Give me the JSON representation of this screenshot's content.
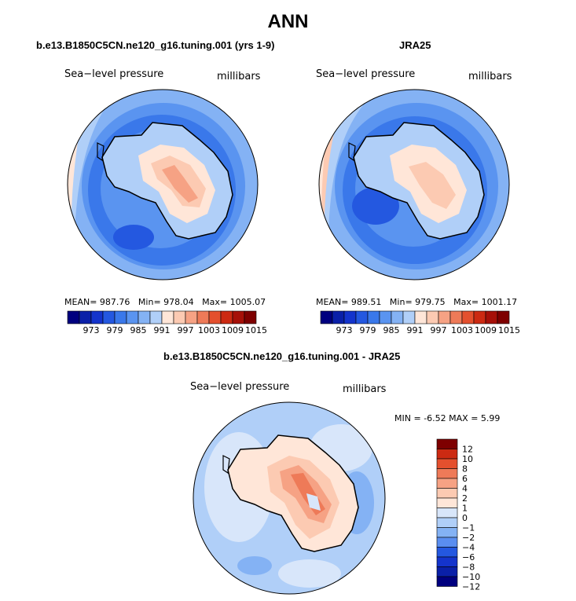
{
  "title": "ANN",
  "panels": [
    {
      "title": "b.e13.B1850C5CN.ne120_g16.tuning.001 (yrs 1-9)",
      "variable_label": "Sea−level pressure",
      "units_label": "millibars",
      "stats": {
        "mean_label": "MEAN=",
        "mean": "987.76",
        "min_label": "Min=",
        "min": "978.04",
        "max_label": "Max=",
        "max": "1005.07"
      }
    },
    {
      "title": "JRA25",
      "variable_label": "Sea−level pressure",
      "units_label": "millibars",
      "stats": {
        "mean_label": "MEAN=",
        "mean": "989.51",
        "min_label": "Min=",
        "min": "979.75",
        "max_label": "Max=",
        "max": "1001.17"
      }
    }
  ],
  "diff_panel": {
    "title": "b.e13.B1850C5CN.ne120_g16.tuning.001 - JRA25",
    "variable_label": "Sea−level pressure",
    "units_label": "millibars",
    "min_label": "MIN =",
    "min": "-6.52",
    "max_label": "MAX =",
    "max": "5.99"
  },
  "colors": {
    "abs_colorbar": [
      "#00007f",
      "#0a20a8",
      "#1434cc",
      "#2458e0",
      "#3a78ea",
      "#5a94f0",
      "#84b2f4",
      "#b0cff8",
      "#ffe6d8",
      "#fccab2",
      "#f6a284",
      "#ee7a58",
      "#e4502e",
      "#cc2a12",
      "#a61008",
      "#7e0000"
    ],
    "diff_colorbar": [
      "#00007f",
      "#0a20a8",
      "#1434cc",
      "#2458e0",
      "#5a8ef0",
      "#84b2f4",
      "#b0cff8",
      "#d8e6fa",
      "#ffe6d8",
      "#fccab2",
      "#f6a284",
      "#ee7a58",
      "#e4502e",
      "#cc2a12",
      "#7e0000"
    ]
  },
  "chart_data": [
    {
      "type": "heatmap",
      "title": "b.e13.B1850C5CN.ne120_g16.tuning.001 (yrs 1-9)",
      "projection": "south polar stereographic",
      "variable": "Sea−level pressure",
      "units": "millibars",
      "mean": 987.76,
      "min": 978.04,
      "max": 1005.07,
      "colorbar_ticks": [
        "973",
        "979",
        "985",
        "991",
        "997",
        "1003",
        "1009",
        "1015"
      ]
    },
    {
      "type": "heatmap",
      "title": "JRA25",
      "projection": "south polar stereographic",
      "variable": "Sea−level pressure",
      "units": "millibars",
      "mean": 989.51,
      "min": 979.75,
      "max": 1001.17,
      "colorbar_ticks": [
        "973",
        "979",
        "985",
        "991",
        "997",
        "1003",
        "1009",
        "1015"
      ]
    },
    {
      "type": "heatmap",
      "title": "b.e13.B1850C5CN.ne120_g16.tuning.001 - JRA25",
      "projection": "south polar stereographic",
      "variable": "Sea−level pressure",
      "units": "millibars",
      "min": -6.52,
      "max": 5.99,
      "colorbar_ticks": [
        "12",
        "10",
        "8",
        "6",
        "4",
        "2",
        "1",
        "0",
        "−1",
        "−2",
        "−4",
        "−6",
        "−8",
        "−10",
        "−12"
      ]
    }
  ]
}
